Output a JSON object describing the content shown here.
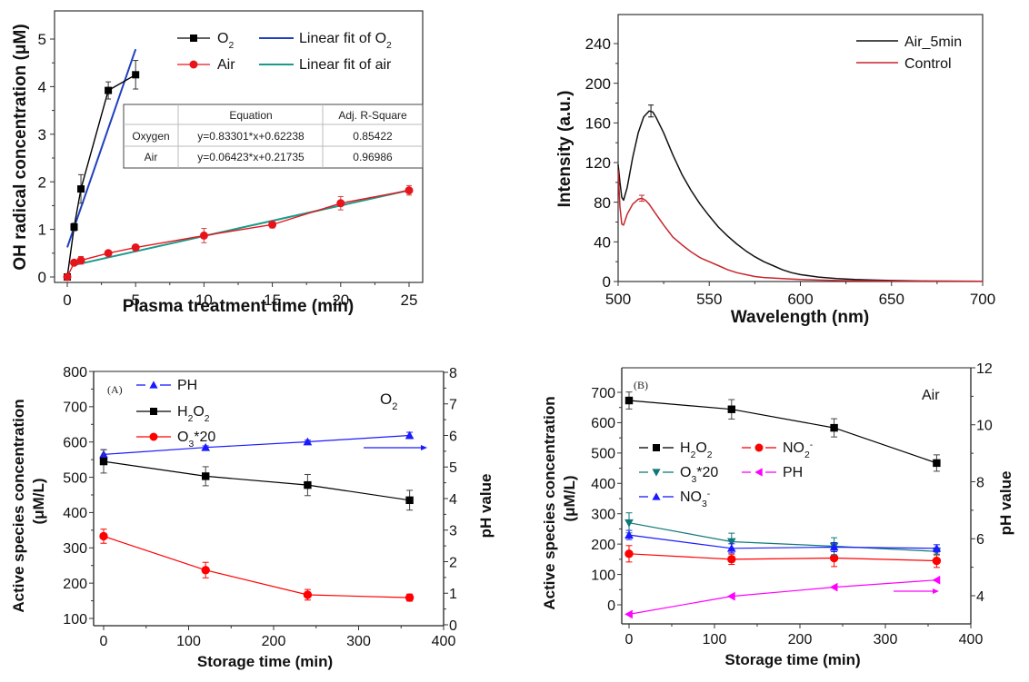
{
  "chart_data": [
    {
      "type": "line",
      "title": "",
      "xlabel": "Plasma treatment time (min)",
      "ylabel": "OH radical concentration (μM)",
      "xlim": [
        0,
        25
      ],
      "ylim": [
        0,
        5.5
      ],
      "xticks": [
        "0",
        "5",
        "10",
        "15",
        "20",
        "25"
      ],
      "yticks": [
        "0",
        "1",
        "2",
        "3",
        "4",
        "5"
      ],
      "grid": false,
      "legend_position": "top-right",
      "series": [
        {
          "name": "O2",
          "label_main": "O",
          "label_sub": "2",
          "color": "#000000",
          "marker": "square",
          "x": [
            0,
            0.5,
            1,
            3,
            5
          ],
          "y": [
            0.0,
            1.05,
            1.85,
            3.92,
            4.25
          ],
          "err": [
            0.05,
            0.08,
            0.3,
            0.18,
            0.3
          ]
        },
        {
          "name": "Air",
          "label_main": "Air",
          "color": "#e8141c",
          "marker": "circle",
          "x": [
            0,
            0.5,
            1,
            3,
            5,
            10,
            15,
            20,
            25
          ],
          "y": [
            0.0,
            0.3,
            0.35,
            0.5,
            0.62,
            0.87,
            1.1,
            1.55,
            1.82
          ],
          "err": [
            0.03,
            0.05,
            0.08,
            0.05,
            0.06,
            0.15,
            0.07,
            0.14,
            0.1
          ]
        },
        {
          "name": "Linear fit of O2",
          "label_main": "Linear fit of O",
          "label_sub": "2",
          "color": "#2040c0",
          "type": "fit",
          "slope": 0.83301,
          "intercept": 0.62238,
          "x_range": [
            0,
            5
          ]
        },
        {
          "name": "Linear fit of air",
          "label_main": "Linear fit of air",
          "color": "#1a9a8a",
          "type": "fit",
          "slope": 0.06423,
          "intercept": 0.21735,
          "x_range": [
            0.5,
            25
          ]
        }
      ],
      "table": {
        "headers": [
          "",
          "Equation",
          "Adj. R-Square"
        ],
        "rows": [
          [
            "Oxygen",
            "y=0.83301*x+0.62238",
            "0.85422"
          ],
          [
            "Air",
            "y=0.06423*x+0.21735",
            "0.96986"
          ]
        ]
      }
    },
    {
      "type": "line",
      "title": "",
      "xlabel": "Wavelength (nm)",
      "ylabel": "Intensity (a.u.)",
      "xlim": [
        500,
        700
      ],
      "ylim": [
        0,
        270
      ],
      "xticks": [
        "500",
        "550",
        "600",
        "650",
        "700"
      ],
      "yticks": [
        "0",
        "40",
        "80",
        "120",
        "160",
        "200",
        "240"
      ],
      "grid": false,
      "legend_position": "top-right",
      "series": [
        {
          "name": "Air_5min",
          "color": "#111111",
          "x": [
            500,
            501,
            502,
            503,
            505,
            508,
            511,
            514,
            517,
            519,
            521,
            525,
            530,
            535,
            540,
            545,
            550,
            555,
            560,
            565,
            570,
            575,
            580,
            585,
            590,
            595,
            600,
            610,
            620,
            630,
            640,
            650,
            670,
            700
          ],
          "y": [
            118,
            100,
            85,
            82,
            95,
            125,
            150,
            166,
            172,
            171,
            165,
            150,
            128,
            108,
            92,
            78,
            66,
            55,
            46,
            38,
            31,
            25,
            20,
            16,
            12,
            9,
            7,
            4.5,
            3,
            2,
            1.5,
            1,
            0.5,
            0.3
          ],
          "peak_error": {
            "x": 518,
            "y": 172,
            "err": 6
          }
        },
        {
          "name": "Control",
          "color": "#c8242c",
          "x": [
            500,
            501,
            502,
            503,
            505,
            508,
            511,
            513,
            515,
            517,
            520,
            525,
            530,
            535,
            540,
            545,
            550,
            555,
            560,
            565,
            570,
            575,
            580,
            590,
            600,
            610,
            620,
            640,
            660,
            700
          ],
          "y": [
            112,
            75,
            58,
            57,
            68,
            78,
            83,
            84,
            82,
            78,
            70,
            57,
            45,
            37,
            30,
            24,
            20,
            16,
            12,
            9,
            7,
            5,
            4,
            3,
            2,
            1.5,
            1,
            0.6,
            0.4,
            0.2
          ],
          "peak_error": {
            "x": 513,
            "y": 84,
            "err": 3
          }
        }
      ]
    },
    {
      "type": "line",
      "title": "",
      "panel_label": "(A)",
      "annotation": "O2",
      "xlabel": "Storage time (min)",
      "ylabel": "Active species concentration (μM/L)",
      "ylabel_line1": "Active species concentration",
      "ylabel_line2": "(μM/L)",
      "y2label": "pH value",
      "xlim": [
        -10,
        400
      ],
      "ylim": [
        80,
        800
      ],
      "y2lim": [
        0,
        8
      ],
      "xticks": [
        "0",
        "100",
        "200",
        "300",
        "400"
      ],
      "yticks": [
        "100",
        "200",
        "300",
        "400",
        "500",
        "600",
        "700",
        "800"
      ],
      "y2ticks": [
        "0",
        "1",
        "2",
        "3",
        "4",
        "5",
        "6",
        "7",
        "8"
      ],
      "grid": false,
      "legend_position": "top-left",
      "series": [
        {
          "name": "PH",
          "label_main": "PH",
          "color": "#1a1aff",
          "marker": "triangle-up",
          "axis": "right",
          "dashed_legend": true,
          "x": [
            0,
            120,
            240,
            360
          ],
          "y": [
            5.4,
            5.62,
            5.8,
            6.0
          ],
          "err": [
            0.15,
            0.05,
            0.05,
            0.1
          ]
        },
        {
          "name": "H2O2",
          "label_main": "H",
          "label_sub": "2",
          "label_main2": "O",
          "label_sub2": "2",
          "color": "#000000",
          "marker": "square",
          "axis": "left",
          "x": [
            0,
            120,
            240,
            360
          ],
          "y": [
            545,
            503,
            478,
            435
          ],
          "err": [
            33,
            27,
            30,
            28
          ]
        },
        {
          "name": "O3*20",
          "label_main": "O",
          "label_sub": "3",
          "label_tail": "*20",
          "color": "#ff0000",
          "marker": "circle",
          "axis": "left",
          "x": [
            0,
            120,
            240,
            360
          ],
          "y": [
            333,
            237,
            167,
            159
          ],
          "err": [
            20,
            22,
            15,
            10
          ]
        }
      ],
      "arrow": {
        "direction": "right",
        "color": "#1a1aff",
        "points_to_axis": "right"
      }
    },
    {
      "type": "line",
      "title": "",
      "panel_label": "(B)",
      "annotation": "Air",
      "xlabel": "Storage time (min)",
      "ylabel": "Active species concentration (μM/L)",
      "ylabel_line1": "Active species concentration",
      "ylabel_line2": "(μM/L)",
      "y2label": "pH value",
      "xlim": [
        -10,
        400
      ],
      "ylim": [
        -60,
        760
      ],
      "y2lim": [
        3,
        12
      ],
      "xticks": [
        "0",
        "100",
        "200",
        "300",
        "400"
      ],
      "yticks": [
        "0",
        "100",
        "200",
        "300",
        "400",
        "500",
        "600",
        "700"
      ],
      "y2ticks": [
        "4",
        "6",
        "8",
        "10",
        "12"
      ],
      "grid": false,
      "legend_position": "center-left",
      "series": [
        {
          "name": "H2O2",
          "label_main": "H",
          "label_sub": "2",
          "label_main2": "O",
          "label_sub2": "2",
          "color": "#000000",
          "marker": "square",
          "axis": "left",
          "x": [
            0,
            120,
            240,
            360
          ],
          "y": [
            673,
            644,
            583,
            467
          ],
          "err": [
            28,
            32,
            30,
            27
          ]
        },
        {
          "name": "NO2-",
          "label_main": "NO",
          "label_sub": "2",
          "label_sup": "-",
          "color": "#ff0000",
          "marker": "circle",
          "axis": "left",
          "x": [
            0,
            120,
            240,
            360
          ],
          "y": [
            168,
            150,
            154,
            145
          ],
          "err": [
            27,
            17,
            28,
            22
          ]
        },
        {
          "name": "O3*20",
          "label_main": "O",
          "label_sub": "3",
          "label_tail": "*20",
          "color": "#107878",
          "marker": "triangle-down",
          "axis": "left",
          "x": [
            0,
            120,
            240,
            360
          ],
          "y": [
            270,
            208,
            193,
            176
          ],
          "err": [
            33,
            28,
            28,
            12
          ]
        },
        {
          "name": "PH",
          "label_main": "PH",
          "color": "#ff00ff",
          "marker": "triangle-left",
          "axis": "right",
          "x": [
            0,
            120,
            240,
            360
          ],
          "y": [
            3.35,
            3.98,
            4.3,
            4.55
          ],
          "err": [
            0,
            0,
            0,
            0
          ]
        },
        {
          "name": "NO3-",
          "label_main": "NO",
          "label_sub": "3",
          "label_sup": "-",
          "color": "#1a1aff",
          "marker": "triangle-up",
          "axis": "left",
          "x": [
            0,
            120,
            240,
            360
          ],
          "y": [
            230,
            186,
            190,
            186
          ],
          "err": [
            15,
            15,
            15,
            12
          ]
        }
      ],
      "arrow": {
        "direction": "right",
        "color": "#ff00ff",
        "points_to_axis": "right"
      }
    }
  ]
}
